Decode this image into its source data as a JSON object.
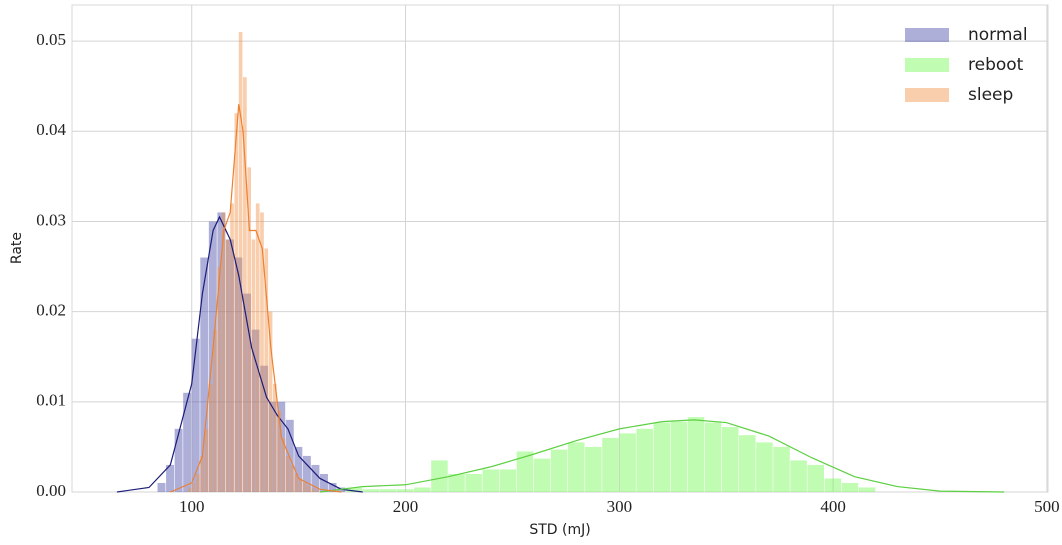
{
  "chart_data": {
    "type": "histogram",
    "xlabel": "STD (mJ)",
    "ylabel": "Rate",
    "xlim": [
      44,
      500.5
    ],
    "ylim": [
      0,
      0.054
    ],
    "xticks": [
      100,
      200,
      300,
      400,
      500
    ],
    "yticks": [
      {
        "value": 0,
        "label": "0.00"
      },
      0.01,
      0.02,
      0.03,
      0.04,
      0.05
    ],
    "grid": true,
    "legend": "upper right",
    "series": [
      {
        "name": "normal",
        "color": "#4c4ea8",
        "line_color": "#1c1c7a",
        "bins": [
          84,
          88,
          92,
          96,
          100,
          104,
          108,
          112,
          116,
          120,
          124,
          128,
          132,
          136,
          140,
          144,
          148,
          152,
          156,
          160,
          164,
          168,
          172
        ],
        "values": [
          0.001,
          0.003,
          0.007,
          0.011,
          0.017,
          0.026,
          0.03,
          0.031,
          0.028,
          0.026,
          0.022,
          0.018,
          0.014,
          0.01,
          0.01,
          0.008,
          0.005,
          0.004,
          0.003,
          0.002,
          0.001,
          0.0005
        ],
        "kde": {
          "x": [
            65,
            80,
            90,
            100,
            105,
            110,
            113,
            118,
            122,
            128,
            135,
            140,
            145,
            150,
            160,
            170,
            180
          ],
          "values": [
            0,
            0.0005,
            0.003,
            0.012,
            0.022,
            0.029,
            0.0305,
            0.028,
            0.024,
            0.016,
            0.0105,
            0.0085,
            0.007,
            0.004,
            0.0015,
            0.0003,
            0
          ]
        }
      },
      {
        "name": "reboot",
        "color": "#74f854",
        "line_color": "#5ccf42",
        "bins": [
          172,
          180,
          188,
          196,
          204,
          212,
          220,
          228,
          236,
          244,
          252,
          260,
          268,
          276,
          284,
          292,
          300,
          308,
          316,
          324,
          332,
          340,
          348,
          356,
          364,
          372,
          380,
          388,
          396,
          404,
          412,
          420
        ],
        "values": [
          0.0005,
          0.0003,
          0.0003,
          0.0003,
          0.0005,
          0.0035,
          0.002,
          0.002,
          0.0025,
          0.0025,
          0.0045,
          0.0037,
          0.0047,
          0.0055,
          0.005,
          0.006,
          0.0065,
          0.007,
          0.0077,
          0.0078,
          0.0083,
          0.0077,
          0.0072,
          0.0063,
          0.0055,
          0.005,
          0.0035,
          0.003,
          0.0015,
          0.001,
          0.0005
        ],
        "kde": {
          "x": [
            160,
            180,
            200,
            220,
            240,
            260,
            280,
            300,
            320,
            335,
            350,
            370,
            390,
            410,
            430,
            450,
            480
          ],
          "values": [
            0,
            0.0006,
            0.0008,
            0.0017,
            0.0028,
            0.0042,
            0.0057,
            0.007,
            0.0078,
            0.008,
            0.0077,
            0.0062,
            0.0038,
            0.0017,
            0.0006,
            0.0001,
            0
          ]
        }
      },
      {
        "name": "sleep",
        "color": "#f0924a",
        "line_color": "#ee8030",
        "bins": [
          98,
          100,
          102,
          104,
          106,
          108,
          110,
          112,
          114,
          116,
          118,
          120,
          122,
          124,
          126,
          128,
          130,
          132,
          134,
          136,
          138,
          140,
          142,
          144,
          146,
          148,
          150,
          152,
          154,
          156,
          158,
          160
        ],
        "values": [
          0.0005,
          0.001,
          0.002,
          0.004,
          0.007,
          0.012,
          0.018,
          0.025,
          0.031,
          0.028,
          0.032,
          0.042,
          0.051,
          0.046,
          0.036,
          0.028,
          0.032,
          0.031,
          0.027,
          0.02,
          0.012,
          0.009,
          0.006,
          0.004,
          0.003,
          0.002,
          0.0015,
          0.001,
          0.0007,
          0.0004,
          0.0002
        ],
        "kde": {
          "x": [
            90,
            100,
            105,
            110,
            115,
            118,
            122,
            124,
            127,
            130,
            133,
            137,
            142,
            150,
            160,
            170
          ],
          "values": [
            0,
            0.001,
            0.004,
            0.016,
            0.029,
            0.031,
            0.043,
            0.04,
            0.029,
            0.029,
            0.027,
            0.016,
            0.006,
            0.0015,
            0.0003,
            0
          ]
        }
      }
    ]
  }
}
